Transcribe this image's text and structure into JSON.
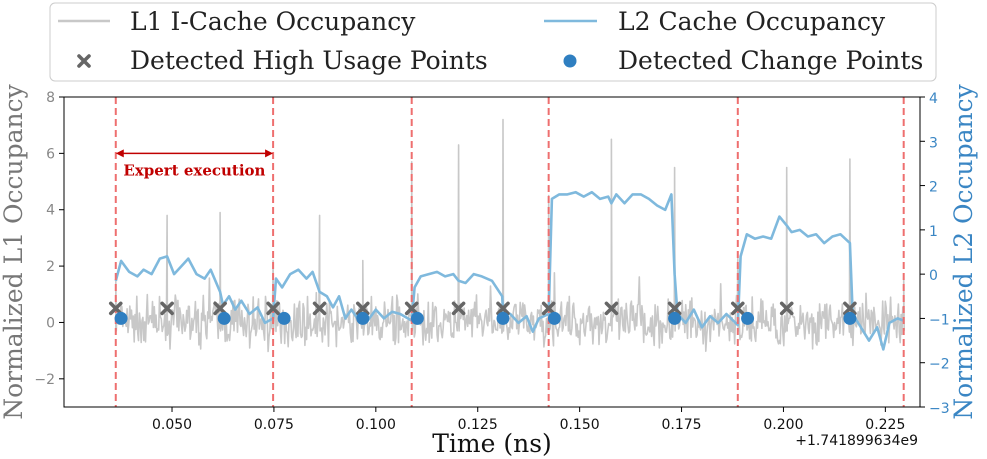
{
  "chart_data": {
    "type": "line",
    "xlabel": "Time (ns)",
    "ylabel_left": "Normalized L1 Occupancy",
    "ylabel_right": "Normalized L2 Occupancy",
    "x_offset_label": "+1.741899634e9",
    "xlim": [
      0.0235,
      0.2335
    ],
    "ylim_left": [
      -3,
      8
    ],
    "ylim_right": [
      -3,
      4
    ],
    "x_ticks": [
      0.05,
      0.075,
      0.1,
      0.125,
      0.15,
      0.175,
      0.2,
      0.225
    ],
    "x_tick_labels": [
      "0.050",
      "0.075",
      "0.100",
      "0.125",
      "0.150",
      "0.175",
      "0.200",
      "0.225"
    ],
    "y_ticks_left": [
      -2,
      0,
      2,
      4,
      6,
      8
    ],
    "y_tick_labels_left": [
      "−2",
      "0",
      "2",
      "4",
      "6",
      "8"
    ],
    "y_ticks_right": [
      -3,
      -2,
      -1,
      0,
      1,
      2,
      3,
      4
    ],
    "y_tick_labels_right": [
      "−3",
      "−2",
      "−1",
      "0",
      "1",
      "2",
      "3",
      "4"
    ],
    "colors": {
      "l1": "#c8c8c8",
      "l2": "#7fb9dd",
      "right_axis": "#3a86c4",
      "left_axis": "#888888",
      "high_usage": "#666666",
      "change_point": "#2f7fc1",
      "vline": "#ee6f6f",
      "annotation": "#c00000"
    },
    "legend": [
      {
        "label": "L1 I-Cache Occupancy",
        "marker": "line",
        "color": "#c8c8c8"
      },
      {
        "label": "L2 Cache Occupancy",
        "marker": "line",
        "color": "#7fb9dd"
      },
      {
        "label": "Detected High Usage Points",
        "marker": "x",
        "color": "#666666"
      },
      {
        "label": "Detected Change Points",
        "marker": "circle",
        "color": "#2f7fc1"
      }
    ],
    "vertical_lines_x": [
      0.0362,
      0.0748,
      0.1088,
      0.1424,
      0.1888,
      0.2295
    ],
    "annotation": {
      "text": "Expert execution",
      "x_start": 0.0362,
      "x_end": 0.0748,
      "y": 6.0
    },
    "l1_spikes": [
      {
        "x": 0.0362,
        "y": 1.5
      },
      {
        "x": 0.0488,
        "y": 3.8
      },
      {
        "x": 0.0618,
        "y": 3.9
      },
      {
        "x": 0.0748,
        "y": 2.2
      },
      {
        "x": 0.0862,
        "y": 3.8
      },
      {
        "x": 0.0968,
        "y": 2.2
      },
      {
        "x": 0.1088,
        "y": 5.7
      },
      {
        "x": 0.1203,
        "y": 6.3
      },
      {
        "x": 0.1312,
        "y": 7.2
      },
      {
        "x": 0.1424,
        "y": 4.5
      },
      {
        "x": 0.1578,
        "y": 6.5
      },
      {
        "x": 0.1733,
        "y": 5.5
      },
      {
        "x": 0.1888,
        "y": 2.3
      },
      {
        "x": 0.2008,
        "y": 5.5
      },
      {
        "x": 0.2163,
        "y": 5.8
      },
      {
        "x": 0.2295,
        "y": 1.6
      }
    ],
    "l1_noise_amplitude": 0.8,
    "l2_series": [
      [
        0.0362,
        -0.15
      ],
      [
        0.0375,
        0.3
      ],
      [
        0.0395,
        0.05
      ],
      [
        0.0415,
        -0.05
      ],
      [
        0.043,
        0.1
      ],
      [
        0.045,
        0.0
      ],
      [
        0.047,
        0.35
      ],
      [
        0.0488,
        0.4
      ],
      [
        0.0505,
        0.0
      ],
      [
        0.052,
        0.15
      ],
      [
        0.054,
        0.35
      ],
      [
        0.056,
        0.0
      ],
      [
        0.058,
        -0.1
      ],
      [
        0.0595,
        0.1
      ],
      [
        0.0618,
        -0.4
      ],
      [
        0.0625,
        -0.7
      ],
      [
        0.064,
        -0.5
      ],
      [
        0.0655,
        -0.8
      ],
      [
        0.067,
        -0.6
      ],
      [
        0.069,
        -0.9
      ],
      [
        0.071,
        -0.75
      ],
      [
        0.0728,
        -1.1
      ],
      [
        0.0748,
        -1.0
      ],
      [
        0.0755,
        -0.1
      ],
      [
        0.077,
        -0.3
      ],
      [
        0.079,
        0.0
      ],
      [
        0.081,
        0.1
      ],
      [
        0.083,
        -0.1
      ],
      [
        0.0845,
        0.05
      ],
      [
        0.0862,
        -0.4
      ],
      [
        0.088,
        -0.5
      ],
      [
        0.0895,
        -0.75
      ],
      [
        0.091,
        -0.5
      ],
      [
        0.0925,
        -1.0
      ],
      [
        0.094,
        -0.8
      ],
      [
        0.0955,
        -1.0
      ],
      [
        0.0968,
        -0.9
      ],
      [
        0.098,
        -1.05
      ],
      [
        0.1,
        -0.8
      ],
      [
        0.102,
        -1.0
      ],
      [
        0.104,
        -0.85
      ],
      [
        0.106,
        -0.9
      ],
      [
        0.1088,
        -1.05
      ],
      [
        0.1095,
        -0.3
      ],
      [
        0.111,
        -0.05
      ],
      [
        0.113,
        0.0
      ],
      [
        0.115,
        0.05
      ],
      [
        0.117,
        -0.05
      ],
      [
        0.119,
        0.0
      ],
      [
        0.1203,
        -0.15
      ],
      [
        0.122,
        -0.2
      ],
      [
        0.124,
        0.0
      ],
      [
        0.126,
        -0.05
      ],
      [
        0.1285,
        -0.15
      ],
      [
        0.131,
        -0.5
      ],
      [
        0.1312,
        -0.85
      ],
      [
        0.133,
        -0.9
      ],
      [
        0.135,
        -1.1
      ],
      [
        0.137,
        -0.95
      ],
      [
        0.1385,
        -1.3
      ],
      [
        0.14,
        -1.0
      ],
      [
        0.1424,
        -0.9
      ],
      [
        0.1432,
        1.7
      ],
      [
        0.145,
        1.8
      ],
      [
        0.147,
        1.8
      ],
      [
        0.149,
        1.85
      ],
      [
        0.151,
        1.75
      ],
      [
        0.153,
        1.85
      ],
      [
        0.155,
        1.7
      ],
      [
        0.157,
        1.75
      ],
      [
        0.1578,
        1.6
      ],
      [
        0.159,
        1.8
      ],
      [
        0.161,
        1.6
      ],
      [
        0.163,
        1.8
      ],
      [
        0.165,
        1.8
      ],
      [
        0.167,
        1.7
      ],
      [
        0.169,
        1.55
      ],
      [
        0.171,
        1.45
      ],
      [
        0.1725,
        1.8
      ],
      [
        0.1733,
        0.0
      ],
      [
        0.174,
        -0.9
      ],
      [
        0.176,
        -1.1
      ],
      [
        0.178,
        -0.8
      ],
      [
        0.18,
        -1.2
      ],
      [
        0.182,
        -0.95
      ],
      [
        0.184,
        -1.1
      ],
      [
        0.186,
        -0.9
      ],
      [
        0.1888,
        -1.15
      ],
      [
        0.1895,
        0.4
      ],
      [
        0.191,
        0.9
      ],
      [
        0.193,
        0.8
      ],
      [
        0.195,
        0.85
      ],
      [
        0.197,
        0.8
      ],
      [
        0.199,
        1.3
      ],
      [
        0.2008,
        1.1
      ],
      [
        0.202,
        0.95
      ],
      [
        0.204,
        1.0
      ],
      [
        0.206,
        0.85
      ],
      [
        0.208,
        0.9
      ],
      [
        0.21,
        0.7
      ],
      [
        0.212,
        0.85
      ],
      [
        0.214,
        0.9
      ],
      [
        0.2163,
        0.7
      ],
      [
        0.217,
        -0.9
      ],
      [
        0.219,
        -1.2
      ],
      [
        0.221,
        -1.5
      ],
      [
        0.223,
        -1.2
      ],
      [
        0.2245,
        -1.7
      ],
      [
        0.226,
        -1.1
      ],
      [
        0.228,
        -1.0
      ],
      [
        0.2295,
        -1.05
      ]
    ],
    "high_usage_points": [
      [
        0.0362,
        0.5
      ],
      [
        0.0488,
        0.5
      ],
      [
        0.0618,
        0.5
      ],
      [
        0.0748,
        0.5
      ],
      [
        0.0862,
        0.5
      ],
      [
        0.0968,
        0.5
      ],
      [
        0.1088,
        0.5
      ],
      [
        0.1203,
        0.5
      ],
      [
        0.1312,
        0.5
      ],
      [
        0.1424,
        0.5
      ],
      [
        0.1578,
        0.5
      ],
      [
        0.1733,
        0.5
      ],
      [
        0.1888,
        0.5
      ],
      [
        0.2008,
        0.5
      ],
      [
        0.2163,
        0.5
      ]
    ],
    "change_points_right": [
      [
        0.0375,
        -1.0
      ],
      [
        0.0628,
        -1.0
      ],
      [
        0.0775,
        -1.0
      ],
      [
        0.0968,
        -1.0
      ],
      [
        0.1102,
        -1.0
      ],
      [
        0.1312,
        -1.0
      ],
      [
        0.1438,
        -1.0
      ],
      [
        0.1733,
        -1.0
      ],
      [
        0.1912,
        -1.0
      ],
      [
        0.2163,
        -1.0
      ]
    ]
  }
}
